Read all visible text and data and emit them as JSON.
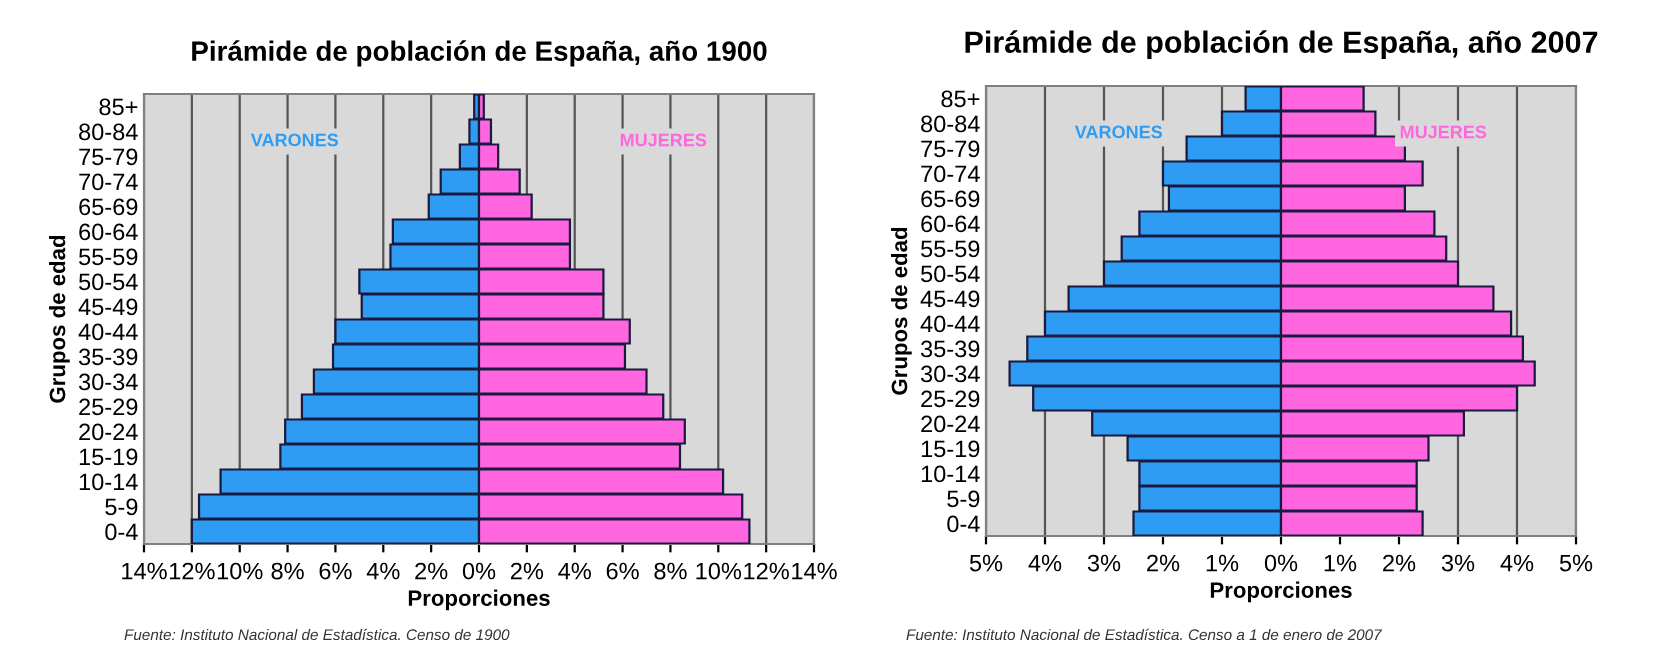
{
  "chart_data": [
    {
      "type": "bar",
      "orientation": "horizontal",
      "stacked": true,
      "title": "Pirámide de población de España, año 1900",
      "xlabel": "Proporciones",
      "ylabel": "Grupos de edad",
      "categories": [
        "85+",
        "80-84",
        "75-79",
        "70-74",
        "65-69",
        "60-64",
        "55-59",
        "50-54",
        "45-49",
        "40-44",
        "35-39",
        "30-34",
        "25-29",
        "20-24",
        "15-19",
        "10-14",
        "5-9",
        "0-4"
      ],
      "series": [
        {
          "name": "VARONES",
          "color": "#2e9cf2",
          "values": [
            -0.2,
            -0.4,
            -0.8,
            -1.6,
            -2.1,
            -3.6,
            -3.7,
            -5.0,
            -4.9,
            -6.0,
            -6.1,
            -6.9,
            -7.4,
            -8.1,
            -8.3,
            -10.8,
            -11.7,
            -12.0
          ]
        },
        {
          "name": "MUJERES",
          "color": "#ff66e0",
          "values": [
            0.2,
            0.5,
            0.8,
            1.7,
            2.2,
            3.8,
            3.8,
            5.2,
            5.2,
            6.3,
            6.1,
            7.0,
            7.7,
            8.6,
            8.4,
            10.2,
            11.0,
            11.3
          ]
        }
      ],
      "xlim": [
        -14,
        14
      ],
      "xticks": [
        {
          "value": -14,
          "label": "14%"
        },
        {
          "value": -12,
          "label": "12%"
        },
        {
          "value": -10,
          "label": "10%"
        },
        {
          "value": -8,
          "label": "8%"
        },
        {
          "value": -6,
          "label": "6%"
        },
        {
          "value": -4,
          "label": "4%"
        },
        {
          "value": -2,
          "label": "2%"
        },
        {
          "value": 0,
          "label": "0%"
        },
        {
          "value": 2,
          "label": "2%"
        },
        {
          "value": 4,
          "label": "4%"
        },
        {
          "value": 6,
          "label": "6%"
        },
        {
          "value": 8,
          "label": "8%"
        },
        {
          "value": 10,
          "label": "10%"
        },
        {
          "value": 12,
          "label": "12%"
        },
        {
          "value": 14,
          "label": "14%"
        }
      ],
      "grid": "x",
      "legend": false,
      "annotations": [
        "Fuente: Instituto Nacional de Estadística. Censo de 1900"
      ]
    },
    {
      "type": "bar",
      "orientation": "horizontal",
      "stacked": true,
      "title": "Pirámide de población de España, año 2007",
      "xlabel": "Proporciones",
      "ylabel": "Grupos de edad",
      "categories": [
        "85+",
        "80-84",
        "75-79",
        "70-74",
        "65-69",
        "60-64",
        "55-59",
        "50-54",
        "45-49",
        "40-44",
        "35-39",
        "30-34",
        "25-29",
        "20-24",
        "15-19",
        "10-14",
        "5-9",
        "0-4"
      ],
      "series": [
        {
          "name": "VARONES",
          "color": "#2e9cf2",
          "values": [
            -0.6,
            -1.0,
            -1.6,
            -2.0,
            -1.9,
            -2.4,
            -2.7,
            -3.0,
            -3.6,
            -4.0,
            -4.3,
            -4.6,
            -4.2,
            -3.2,
            -2.6,
            -2.4,
            -2.4,
            -2.5
          ]
        },
        {
          "name": "MUJERES",
          "color": "#ff66e0",
          "values": [
            1.4,
            1.6,
            2.1,
            2.4,
            2.1,
            2.6,
            2.8,
            3.0,
            3.6,
            3.9,
            4.1,
            4.3,
            4.0,
            3.1,
            2.5,
            2.3,
            2.3,
            2.4
          ]
        }
      ],
      "xlim": [
        -5,
        5
      ],
      "xticks": [
        {
          "value": -5,
          "label": "5%"
        },
        {
          "value": -4,
          "label": "4%"
        },
        {
          "value": -3,
          "label": "3%"
        },
        {
          "value": -2,
          "label": "2%"
        },
        {
          "value": -1,
          "label": "1%"
        },
        {
          "value": 0,
          "label": "0%"
        },
        {
          "value": 1,
          "label": "1%"
        },
        {
          "value": 2,
          "label": "2%"
        },
        {
          "value": 3,
          "label": "3%"
        },
        {
          "value": 4,
          "label": "4%"
        },
        {
          "value": 5,
          "label": "5%"
        }
      ],
      "grid": "x",
      "legend": false,
      "annotations": [
        "Fuente: Instituto Nacional de Estadística. Censo a 1 de enero de 2007"
      ]
    }
  ]
}
